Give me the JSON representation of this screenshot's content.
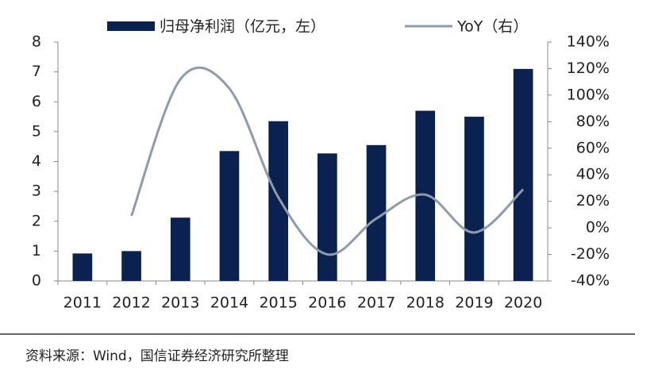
{
  "chart_data": {
    "type": "bar_line",
    "categories": [
      "2011",
      "2012",
      "2013",
      "2014",
      "2015",
      "2016",
      "2017",
      "2018",
      "2019",
      "2020"
    ],
    "series": [
      {
        "name": "归母净利润（亿元，左）",
        "type": "bar",
        "color": "#0b2150",
        "values": [
          0.92,
          1.0,
          2.12,
          4.35,
          5.35,
          4.27,
          4.55,
          5.7,
          5.5,
          7.1
        ]
      },
      {
        "name": "YoY（右）",
        "type": "line",
        "axis": "y2",
        "color": "#8e9baa",
        "values": [
          null,
          9,
          112,
          105,
          23,
          -20,
          7,
          25,
          -3.5,
          29
        ]
      }
    ],
    "ylim": [
      0,
      8
    ],
    "yticks": [
      0,
      1,
      2,
      3,
      4,
      5,
      6,
      7,
      8
    ],
    "y2lim": [
      -40,
      140
    ],
    "y2ticks": [
      {
        "value": -40,
        "label": "-40%"
      },
      {
        "value": -20,
        "label": "-20%"
      },
      {
        "value": 0,
        "label": "0%"
      },
      {
        "value": 20,
        "label": "20%"
      },
      {
        "value": 40,
        "label": "40%"
      },
      {
        "value": 60,
        "label": "60%"
      },
      {
        "value": 80,
        "label": "80%"
      },
      {
        "value": 100,
        "label": "100%"
      },
      {
        "value": 120,
        "label": "120%"
      },
      {
        "value": 140,
        "label": "140%"
      }
    ],
    "legend": "top",
    "source": "资料来源：Wind，国信证券经济研究所整理"
  }
}
